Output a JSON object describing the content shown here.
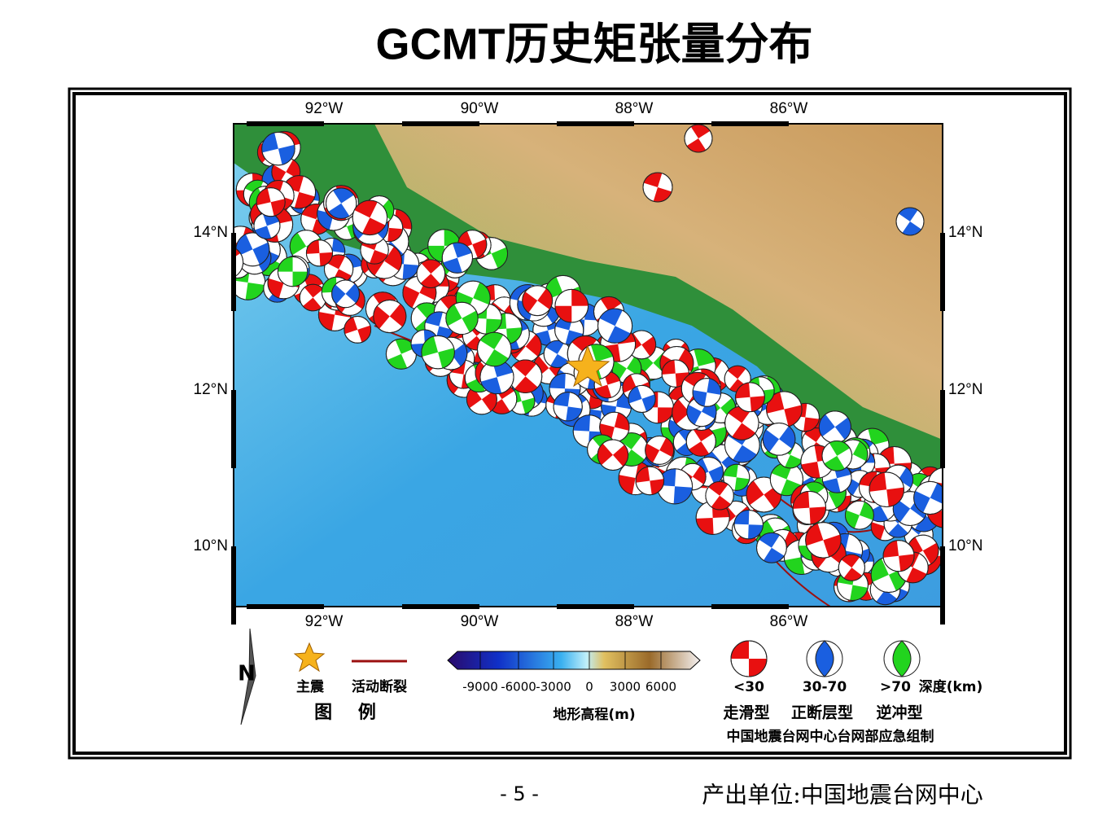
{
  "title": "GCMT历史矩张量分布",
  "map": {
    "lon_labels": [
      "92°W",
      "90°W",
      "88°W",
      "86°W"
    ],
    "lat_labels": [
      "14°N",
      "12°N",
      "10°N"
    ]
  },
  "legend": {
    "north": "N",
    "mainshock": "主震",
    "fault": "活动断裂",
    "heading": "图 例",
    "colorbar_ticks": [
      "-9000",
      "-6000",
      "-3000",
      "0",
      "3000",
      "6000"
    ],
    "colorbar_label": "地形高程(m)",
    "depths": [
      "<30",
      "30-70",
      ">70"
    ],
    "depth_unit": "深度(km)",
    "types": [
      "走滑型",
      "正断层型",
      "逆冲型"
    ],
    "credit": "中国地震台网中心台网部应急组制"
  },
  "footer": {
    "page": "- 5 -",
    "producer": "产出单位:中国地震台网中心"
  }
}
